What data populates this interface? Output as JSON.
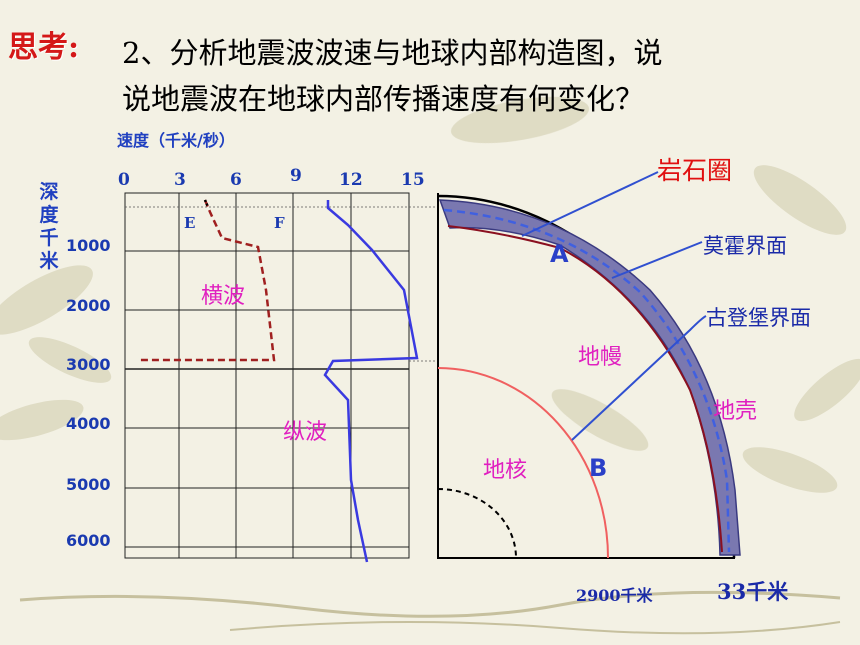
{
  "slide": {
    "think_label": "思考:",
    "question_line1": "2、分析地震波波速与地球内部构造图，说",
    "question_line2": "说地震波在地球内部传播速度有何变化？"
  },
  "chart": {
    "speed_axis_title": "速度（千米/秒）",
    "speed_ticks": [
      "0",
      "3",
      "6",
      "9",
      "12",
      "15"
    ],
    "depth_axis_title": "深度千米",
    "depth_ticks": [
      "1000",
      "2000",
      "3000",
      "4000",
      "5000",
      "6000"
    ],
    "wave_e_label": "E",
    "wave_f_label": "F",
    "transverse_label": "横波",
    "longitudinal_label": "纵波",
    "transverse_color": "#a02020",
    "longitudinal_color": "#3a3ae0"
  },
  "structure": {
    "lithosphere_label": "岩石圈",
    "moho_label": "莫霍界面",
    "gutenberg_label": "古登堡界面",
    "mantle_label": "地幔",
    "crust_label": "地壳",
    "core_label": "地核",
    "letter_a": "A",
    "letter_b": "B",
    "depth_core": "2900千米",
    "depth_crust": "33千米",
    "lithosphere_color": "#7a78b0",
    "core_boundary_color": "#f06060"
  }
}
